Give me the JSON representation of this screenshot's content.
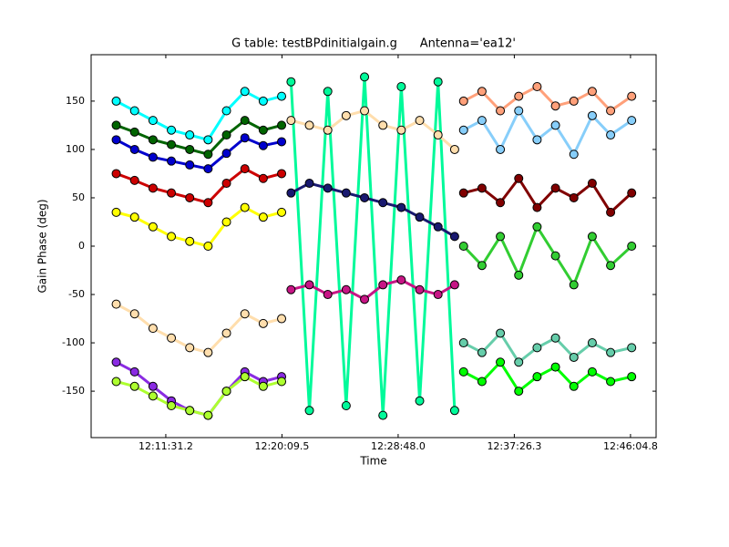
{
  "chart_data": {
    "type": "scatter",
    "title": "G table: testBPdinitialgain.g      Antenna='ea12'",
    "x_label": "Time",
    "y_label": "Gain Phase (deg)",
    "xlim": [
      43558,
      46079
    ],
    "ylim": [
      -198,
      198
    ],
    "xticks": [
      {
        "value": 43891.2,
        "label": "12:11:31.2"
      },
      {
        "value": 44409.5,
        "label": "12:20:09.5"
      },
      {
        "value": 44928,
        "label": "12:28:48.0"
      },
      {
        "value": 45446.3,
        "label": "12:37:26.3"
      },
      {
        "value": 45964.8,
        "label": "12:46:04.8"
      }
    ],
    "yticks": [
      -150,
      -100,
      -50,
      0,
      50,
      100,
      150
    ],
    "x": [
      43670,
      43752,
      43834,
      43916,
      43998,
      44080,
      44162,
      44244,
      44326,
      44408,
      44430,
      44450,
      44532,
      44614,
      44696,
      44778,
      44860,
      44942,
      45024,
      45106,
      45180,
      45200,
      45220,
      45302,
      45384,
      45466,
      45548,
      45630,
      45712,
      45794,
      45876,
      45970
    ],
    "series": [
      {
        "color": "#00fa9a",
        "values": [
          null,
          null,
          null,
          null,
          null,
          null,
          null,
          null,
          null,
          null,
          null,
          170,
          -170,
          160,
          -165,
          175,
          -175,
          165,
          -160,
          170,
          -170,
          null,
          null,
          null,
          null,
          null,
          null,
          null,
          null,
          null,
          null,
          null
        ]
      },
      {
        "color": "#00ffff",
        "values": [
          150,
          140,
          130,
          120,
          115,
          110,
          140,
          160,
          150,
          155,
          null,
          null,
          null,
          null,
          null,
          null,
          null,
          null,
          null,
          null,
          null,
          null,
          null,
          null,
          null,
          null,
          null,
          null,
          null,
          null,
          null,
          null
        ]
      },
      {
        "color": "#006400",
        "values": [
          125,
          118,
          110,
          105,
          100,
          95,
          115,
          130,
          120,
          125,
          null,
          null,
          null,
          null,
          null,
          null,
          null,
          null,
          null,
          null,
          null,
          null,
          null,
          null,
          null,
          null,
          null,
          null,
          null,
          null,
          null,
          null
        ]
      },
      {
        "color": "#0000cd",
        "values": [
          110,
          100,
          92,
          88,
          84,
          80,
          96,
          112,
          104,
          108,
          null,
          null,
          null,
          null,
          null,
          null,
          null,
          null,
          null,
          null,
          null,
          null,
          null,
          null,
          null,
          null,
          null,
          null,
          null,
          null,
          null,
          null
        ]
      },
      {
        "color": "#cc0000",
        "values": [
          75,
          68,
          60,
          55,
          50,
          45,
          65,
          80,
          70,
          75,
          null,
          null,
          null,
          null,
          null,
          null,
          null,
          null,
          null,
          null,
          null,
          null,
          null,
          null,
          null,
          null,
          null,
          null,
          null,
          null,
          null,
          null
        ]
      },
      {
        "color": "#ffff00",
        "values": [
          35,
          30,
          20,
          10,
          5,
          0,
          25,
          40,
          30,
          35,
          null,
          null,
          null,
          null,
          null,
          null,
          null,
          null,
          null,
          null,
          null,
          null,
          null,
          null,
          null,
          null,
          null,
          null,
          null,
          null,
          null,
          null
        ]
      },
      {
        "color": "#ffdead",
        "values": [
          -60,
          -70,
          -85,
          -95,
          -105,
          -110,
          -90,
          -70,
          -80,
          -75,
          null,
          130,
          125,
          120,
          135,
          140,
          125,
          120,
          130,
          115,
          100,
          null,
          null,
          null,
          null,
          null,
          null,
          null,
          null,
          null,
          null,
          null
        ]
      },
      {
        "color": "#8a2be2",
        "values": [
          -120,
          -130,
          -145,
          -160,
          -170,
          -175,
          -150,
          -130,
          -140,
          -135,
          null,
          null,
          null,
          null,
          null,
          null,
          null,
          null,
          null,
          null,
          null,
          null,
          null,
          null,
          null,
          null,
          null,
          null,
          null,
          null,
          null,
          null
        ]
      },
      {
        "color": "#adff2f",
        "values": [
          -140,
          -145,
          -155,
          -165,
          -170,
          -175,
          -150,
          -135,
          -145,
          -140,
          null,
          null,
          null,
          null,
          null,
          null,
          null,
          null,
          null,
          null,
          null,
          null,
          null,
          null,
          null,
          null,
          null,
          null,
          null,
          null,
          null,
          null
        ]
      },
      {
        "color": "#191970",
        "values": [
          null,
          null,
          null,
          null,
          null,
          null,
          null,
          null,
          null,
          null,
          null,
          55,
          65,
          60,
          55,
          50,
          45,
          40,
          30,
          20,
          10,
          null,
          null,
          null,
          null,
          null,
          null,
          null,
          null,
          null,
          null,
          null
        ]
      },
      {
        "color": "#c71585",
        "values": [
          null,
          null,
          null,
          null,
          null,
          null,
          null,
          null,
          null,
          null,
          null,
          -45,
          -40,
          -50,
          -45,
          -55,
          -40,
          -35,
          -45,
          -50,
          -40,
          null,
          null,
          null,
          null,
          null,
          null,
          null,
          null,
          null,
          null,
          null
        ]
      },
      {
        "color": "#ffa07a",
        "values": [
          null,
          null,
          null,
          null,
          null,
          null,
          null,
          null,
          null,
          null,
          null,
          null,
          null,
          null,
          null,
          null,
          null,
          null,
          null,
          null,
          null,
          null,
          150,
          160,
          140,
          155,
          165,
          145,
          150,
          160,
          140,
          155
        ]
      },
      {
        "color": "#87cefa",
        "values": [
          null,
          null,
          null,
          null,
          null,
          null,
          null,
          null,
          null,
          null,
          null,
          null,
          null,
          null,
          null,
          null,
          null,
          null,
          null,
          null,
          null,
          null,
          120,
          130,
          100,
          140,
          110,
          125,
          95,
          135,
          115,
          130
        ]
      },
      {
        "color": "#800000",
        "values": [
          null,
          null,
          null,
          null,
          null,
          null,
          null,
          null,
          null,
          null,
          null,
          null,
          null,
          null,
          null,
          null,
          null,
          null,
          null,
          null,
          null,
          null,
          55,
          60,
          45,
          70,
          40,
          60,
          50,
          65,
          35,
          55
        ]
      },
      {
        "color": "#32cd32",
        "values": [
          null,
          null,
          null,
          null,
          null,
          null,
          null,
          null,
          null,
          null,
          null,
          null,
          null,
          null,
          null,
          null,
          null,
          null,
          null,
          null,
          null,
          null,
          0,
          -20,
          10,
          -30,
          20,
          -10,
          -40,
          10,
          -20,
          0
        ]
      },
      {
        "color": "#66cdaa",
        "values": [
          null,
          null,
          null,
          null,
          null,
          null,
          null,
          null,
          null,
          null,
          null,
          null,
          null,
          null,
          null,
          null,
          null,
          null,
          null,
          null,
          null,
          null,
          -100,
          -110,
          -90,
          -120,
          -105,
          -95,
          -115,
          -100,
          -110,
          -105
        ]
      },
      {
        "color": "#00ff00",
        "values": [
          null,
          null,
          null,
          null,
          null,
          null,
          null,
          null,
          null,
          null,
          null,
          null,
          null,
          null,
          null,
          null,
          null,
          null,
          null,
          null,
          null,
          null,
          -130,
          -140,
          -120,
          -150,
          -135,
          -125,
          -145,
          -130,
          -140,
          -135
        ]
      }
    ]
  }
}
